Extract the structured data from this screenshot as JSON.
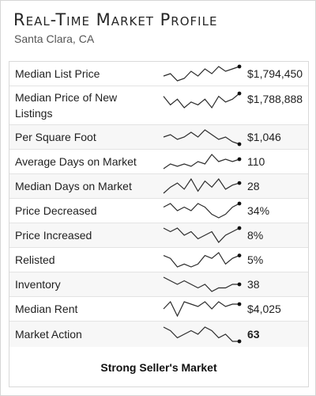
{
  "header": {
    "title": "Real-Time Market Profile",
    "location": "Santa Clara, CA"
  },
  "rows": [
    {
      "label": "Median List Price",
      "value": "$1,794,450",
      "trend": [
        5,
        6,
        3,
        4,
        7,
        5,
        8,
        6,
        9,
        7,
        8,
        9
      ]
    },
    {
      "label": "Median Price of New Listings",
      "value": "$1,788,888",
      "trend": [
        8,
        5,
        7,
        4,
        6,
        5,
        7,
        4,
        8,
        6,
        7,
        9
      ]
    },
    {
      "label": "Per Square Foot",
      "value": "$1,046",
      "trend": [
        6,
        7,
        5,
        6,
        8,
        6,
        9,
        7,
        5,
        6,
        4,
        3
      ]
    },
    {
      "label": "Average Days on Market",
      "value": "110",
      "trend": [
        3,
        5,
        4,
        5,
        4,
        6,
        5,
        9,
        6,
        7,
        6,
        7
      ]
    },
    {
      "label": "Median Days on Market",
      "value": "28",
      "trend": [
        2,
        5,
        7,
        4,
        9,
        3,
        8,
        5,
        9,
        4,
        6,
        7
      ]
    },
    {
      "label": "Price Decreased",
      "value": "34%",
      "trend": [
        6,
        7,
        5,
        6,
        5,
        7,
        6,
        4,
        3,
        4,
        6,
        7
      ]
    },
    {
      "label": "Price Increased",
      "value": "8%",
      "trend": [
        7,
        6,
        7,
        5,
        6,
        4,
        5,
        6,
        3,
        5,
        6,
        7
      ]
    },
    {
      "label": "Relisted",
      "value": "5%",
      "trend": [
        7,
        6,
        3,
        4,
        3,
        4,
        7,
        6,
        8,
        4,
        6,
        7
      ]
    },
    {
      "label": "Inventory",
      "value": "38",
      "trend": [
        8,
        7,
        6,
        7,
        6,
        5,
        6,
        4,
        5,
        5,
        6,
        6
      ]
    },
    {
      "label": "Median Rent",
      "value": "$4,025",
      "trend": [
        5,
        8,
        2,
        8,
        7,
        6,
        8,
        5,
        8,
        6,
        7,
        7
      ]
    },
    {
      "label": "Market Action",
      "value": "63",
      "trend": [
        7,
        6,
        4,
        5,
        6,
        5,
        7,
        6,
        4,
        5,
        3,
        3
      ]
    }
  ],
  "footer": {
    "market_status": "Strong Seller's Market"
  }
}
